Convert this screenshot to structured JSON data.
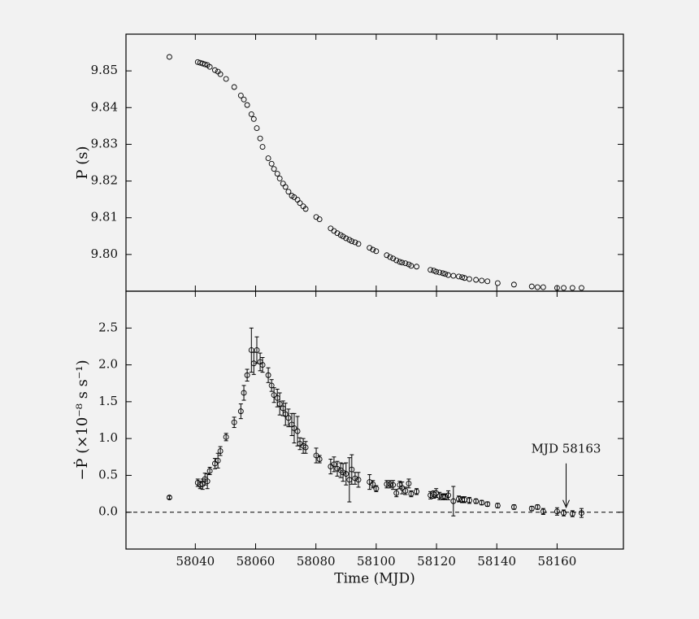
{
  "chart_data": [
    {
      "type": "scatter",
      "ylabel": "P (s)",
      "marker_color": "#000000",
      "x": [
        58031.4,
        58040.8,
        58041.6,
        58042.4,
        58043.2,
        58044.0,
        58044.8,
        58046.5,
        58047.5,
        58048.3,
        58050.2,
        58052.9,
        58055.1,
        58056.1,
        58057.2,
        58058.6,
        58059.4,
        58060.4,
        58061.5,
        58062.3,
        58064.2,
        58065.3,
        58066.1,
        58067.2,
        58068.0,
        58069.1,
        58069.9,
        58070.9,
        58072.0,
        58072.8,
        58073.9,
        58074.7,
        58075.8,
        58076.6,
        58080.1,
        58081.2,
        58084.9,
        58086.0,
        58087.1,
        58088.2,
        58089.0,
        58090.0,
        58091.1,
        58091.9,
        58093.0,
        58094.1,
        58097.8,
        58098.9,
        58100.0,
        58103.5,
        58104.6,
        58105.6,
        58106.7,
        58107.8,
        58108.6,
        58109.7,
        58110.8,
        58111.6,
        58113.4,
        58118.0,
        58119.1,
        58119.9,
        58121.0,
        58122.1,
        58122.9,
        58123.9,
        58125.6,
        58127.4,
        58128.5,
        58129.3,
        58130.9,
        58133.1,
        58135.0,
        58136.9,
        58140.3,
        58145.7,
        58151.6,
        58153.5,
        58155.4,
        58160.0,
        58162.2,
        58165.1,
        58168.1
      ],
      "values": [
        9.8538,
        9.8524,
        9.8522,
        9.852,
        9.8518,
        9.8516,
        9.8511,
        9.8502,
        9.8498,
        9.8491,
        9.8478,
        9.8456,
        9.8433,
        9.8422,
        9.8407,
        9.8382,
        9.8369,
        9.8344,
        9.8316,
        9.8293,
        9.8262,
        9.8247,
        9.8233,
        9.822,
        9.8207,
        9.8193,
        9.8184,
        9.8171,
        9.816,
        9.8156,
        9.8149,
        9.814,
        9.8131,
        9.8124,
        9.8102,
        9.8096,
        9.8071,
        9.8064,
        9.8058,
        9.8053,
        9.8049,
        9.8044,
        9.804,
        9.8036,
        9.8033,
        9.8029,
        9.8018,
        9.8013,
        9.8009,
        9.7998,
        9.7993,
        9.7989,
        9.7984,
        9.798,
        9.7978,
        9.7976,
        9.7973,
        9.7969,
        9.7967,
        9.7958,
        9.7956,
        9.7953,
        9.7951,
        9.7949,
        9.7947,
        9.7944,
        9.7942,
        9.794,
        9.7938,
        9.7936,
        9.7933,
        9.7931,
        9.7929,
        9.7927,
        9.7922,
        9.7918,
        9.7913,
        9.7911,
        9.7911,
        9.7909,
        9.7909,
        9.7909,
        9.7909
      ],
      "xlim": [
        58017,
        58182
      ],
      "xticks": [
        58040,
        58060,
        58080,
        58100,
        58120,
        58140,
        58160
      ],
      "ylim": [
        9.79,
        9.86
      ],
      "yticks": [
        {
          "value": 9.8,
          "label": "9.80"
        },
        9.81,
        9.82,
        9.83,
        9.84,
        9.85
      ]
    },
    {
      "type": "scatter",
      "ylabel": "−Ṗ (×10⁻⁸ s s⁻¹)",
      "xlabel": "Time (MJD)",
      "marker_color": "#000000",
      "x": [
        58031.4,
        58040.8,
        58041.6,
        58042.4,
        58043.2,
        58044.0,
        58044.8,
        58046.5,
        58047.5,
        58048.3,
        58050.2,
        58052.9,
        58055.1,
        58056.1,
        58057.2,
        58058.6,
        58059.4,
        58060.4,
        58061.5,
        58062.3,
        58064.2,
        58065.3,
        58066.1,
        58067.2,
        58068.0,
        58069.1,
        58069.9,
        58070.9,
        58072.0,
        58072.8,
        58073.9,
        58074.7,
        58075.8,
        58076.6,
        58080.1,
        58081.2,
        58084.9,
        58086.0,
        58087.1,
        58088.2,
        58089.0,
        58090.0,
        58091.1,
        58091.9,
        58093.0,
        58094.1,
        58097.8,
        58098.9,
        58100.0,
        58103.5,
        58104.6,
        58105.6,
        58106.7,
        58107.8,
        58108.6,
        58109.7,
        58110.8,
        58111.6,
        58113.4,
        58118.0,
        58119.1,
        58119.9,
        58121.0,
        58122.1,
        58122.9,
        58123.9,
        58125.6,
        58127.4,
        58128.5,
        58129.3,
        58130.9,
        58133.1,
        58135.0,
        58136.9,
        58140.3,
        58145.7,
        58151.6,
        58153.5,
        58155.4,
        58160.0,
        58162.2,
        58165.1,
        58168.1
      ],
      "values": [
        0.2,
        0.4,
        0.37,
        0.38,
        0.45,
        0.42,
        0.56,
        0.66,
        0.7,
        0.83,
        1.02,
        1.22,
        1.37,
        1.62,
        1.86,
        2.2,
        2.02,
        2.2,
        2.04,
        2.0,
        1.86,
        1.72,
        1.59,
        1.55,
        1.47,
        1.41,
        1.33,
        1.28,
        1.19,
        1.14,
        1.1,
        0.93,
        0.9,
        0.88,
        0.77,
        0.72,
        0.62,
        0.65,
        0.59,
        0.57,
        0.54,
        0.52,
        0.44,
        0.58,
        0.46,
        0.44,
        0.41,
        0.38,
        0.32,
        0.38,
        0.38,
        0.37,
        0.26,
        0.37,
        0.33,
        0.29,
        0.39,
        0.25,
        0.28,
        0.23,
        0.24,
        0.26,
        0.22,
        0.21,
        0.21,
        0.23,
        0.15,
        0.18,
        0.17,
        0.17,
        0.16,
        0.15,
        0.13,
        0.11,
        0.09,
        0.07,
        0.05,
        0.07,
        0.01,
        0.01,
        -0.01,
        -0.02,
        -0.01
      ],
      "errors": [
        0.02,
        0.05,
        0.05,
        0.07,
        0.08,
        0.1,
        0.05,
        0.07,
        0.1,
        0.06,
        0.05,
        0.07,
        0.1,
        0.1,
        0.08,
        0.3,
        0.15,
        0.18,
        0.12,
        0.1,
        0.1,
        0.08,
        0.1,
        0.12,
        0.15,
        0.1,
        0.15,
        0.12,
        0.15,
        0.2,
        0.2,
        0.08,
        0.1,
        0.08,
        0.1,
        0.05,
        0.1,
        0.1,
        0.1,
        0.1,
        0.12,
        0.15,
        0.3,
        0.2,
        0.08,
        0.1,
        0.1,
        0.05,
        0.04,
        0.05,
        0.05,
        0.06,
        0.05,
        0.05,
        0.08,
        0.05,
        0.06,
        0.04,
        0.04,
        0.05,
        0.05,
        0.06,
        0.05,
        0.04,
        0.04,
        0.06,
        0.2,
        0.04,
        0.04,
        0.04,
        0.04,
        0.03,
        0.03,
        0.03,
        0.03,
        0.03,
        0.03,
        0.03,
        0.04,
        0.05,
        0.04,
        0.04,
        0.06
      ],
      "xlim": [
        58017,
        58182
      ],
      "xticks": [
        58040,
        58060,
        58080,
        58100,
        58120,
        58140,
        58160
      ],
      "ylim": [
        -0.5,
        3.0
      ],
      "yticks": [
        {
          "value": 0,
          "label": "0.0"
        },
        0.5,
        {
          "value": 1,
          "label": "1.0"
        },
        1.5,
        {
          "value": 2,
          "label": "2.0"
        },
        2.5
      ],
      "hline": 0,
      "annotation": {
        "text": "MJD 58163",
        "x": 58163
      }
    }
  ]
}
